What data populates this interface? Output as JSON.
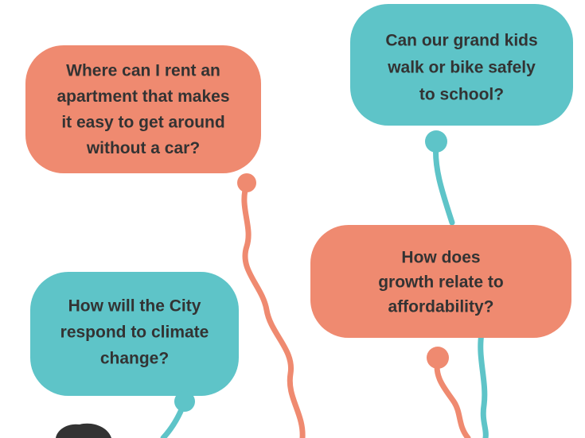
{
  "bubbles": [
    {
      "lines": [
        "Where can I rent an",
        "apartment that makes",
        "it easy to get around",
        "without a car?"
      ]
    },
    {
      "lines": [
        "Can our grand kids",
        "walk or bike safely",
        "to school?"
      ]
    },
    {
      "lines": [
        "How does",
        "growth relate to",
        "affordability?"
      ]
    },
    {
      "lines": [
        "How will the City",
        "respond to climate",
        "change?"
      ]
    }
  ]
}
